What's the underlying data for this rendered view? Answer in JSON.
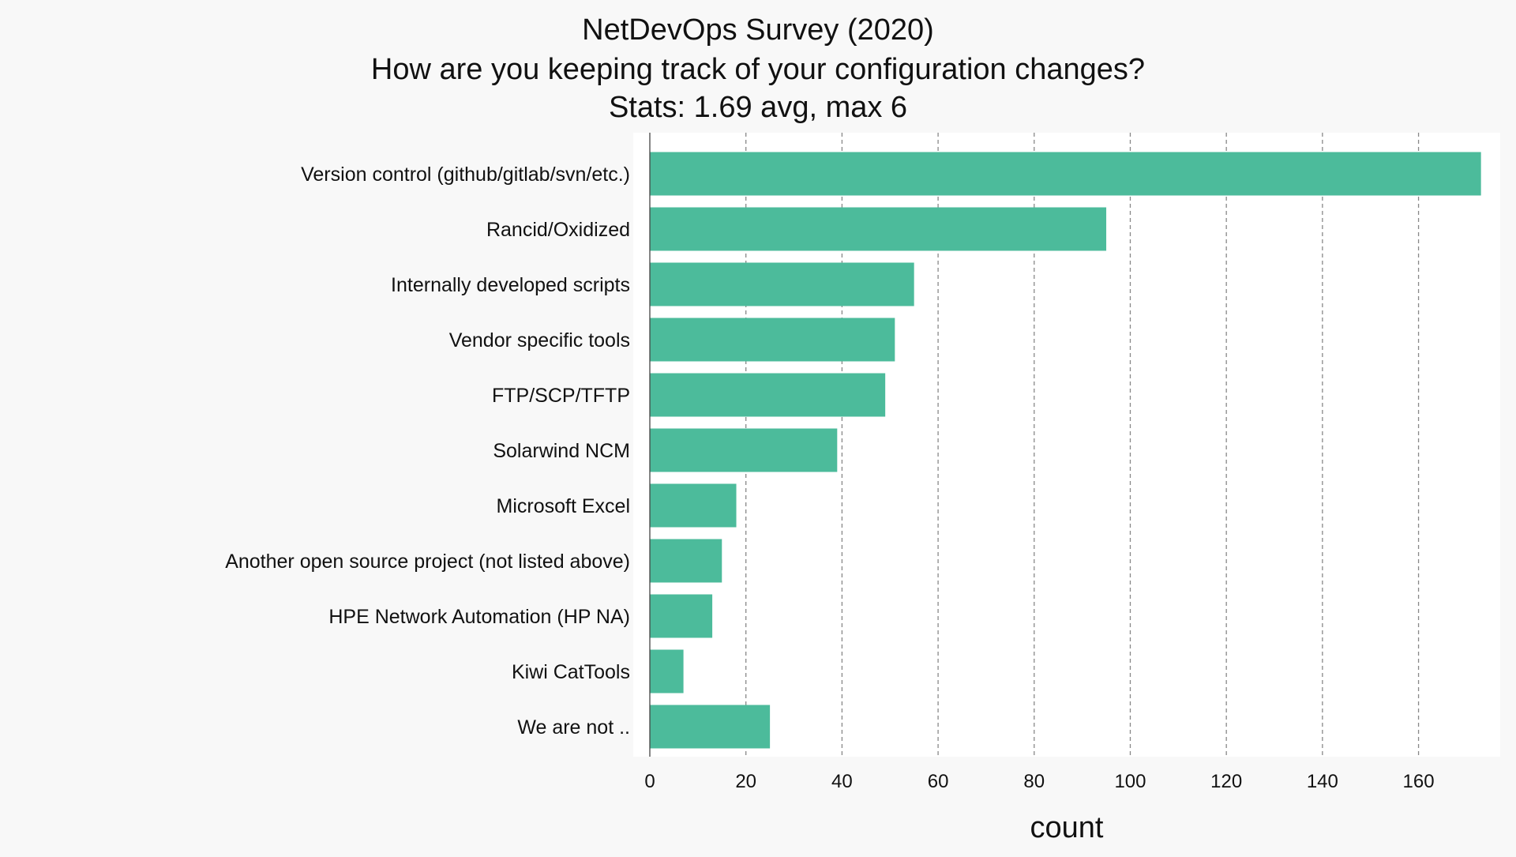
{
  "chart_data": {
    "type": "bar",
    "orientation": "horizontal",
    "title_lines": [
      "NetDevOps Survey (2020)",
      "How are you keeping track of your configuration changes?",
      "Stats: 1.69 avg, max 6"
    ],
    "categories": [
      "Version control (github/gitlab/svn/etc.)",
      "Rancid/Oxidized",
      "Internally developed scripts",
      "Vendor specific tools",
      "FTP/SCP/TFTP",
      "Solarwind NCM",
      "Microsoft Excel",
      "Another open source project (not listed above)",
      "HPE Network Automation (HP NA)",
      "Kiwi CatTools",
      "We are not .."
    ],
    "values": [
      173,
      95,
      55,
      51,
      49,
      39,
      18,
      15,
      13,
      7,
      25
    ],
    "xlabel": "count",
    "ylabel": "",
    "xlim": [
      0,
      177
    ],
    "xticks": [
      0,
      20,
      40,
      60,
      80,
      100,
      120,
      140,
      160
    ],
    "grid": "vertical dashed",
    "colors": {
      "bar": "#4cbb9b",
      "background": "#f8f8f8",
      "plot_background": "#ffffff"
    }
  }
}
